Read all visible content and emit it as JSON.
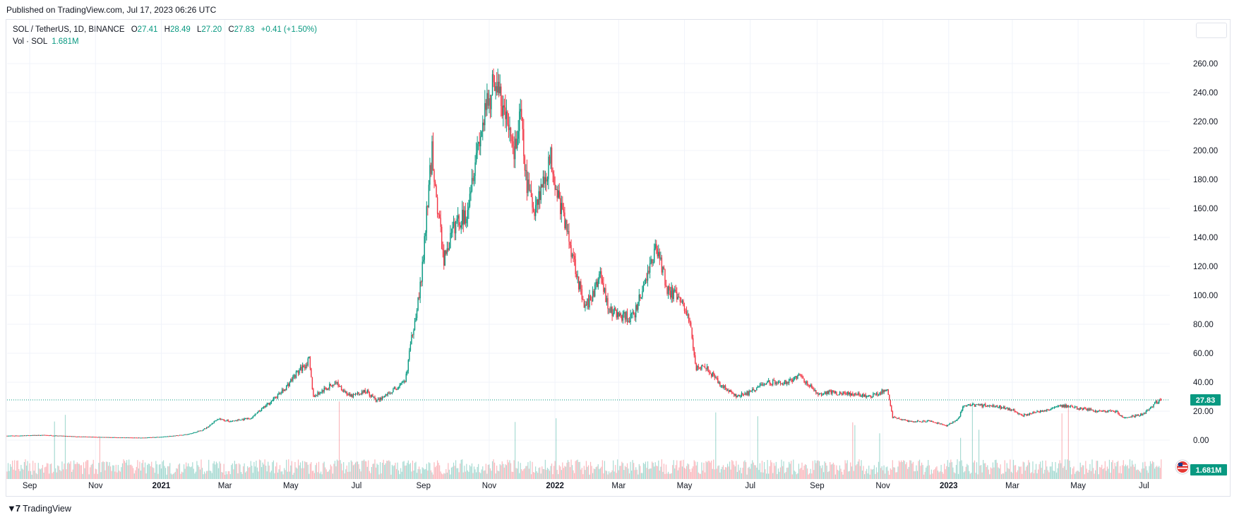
{
  "header": {
    "published": "Published on TradingView.com, Jul 17, 2023 06:26 UTC"
  },
  "legend": {
    "symbol": "SOL / TetherUS, 1D, BINANCE",
    "open_label": "O",
    "open": "27.41",
    "high_label": "H",
    "high": "28.49",
    "low_label": "L",
    "low": "27.20",
    "close_label": "C",
    "close": "27.83",
    "change": "+0.41 (+1.50%)"
  },
  "volume_legend": {
    "label": "Vol · SOL",
    "value": "1.681M"
  },
  "price_tag": "27.83",
  "volume_tag": "1.681M",
  "footer": {
    "brand": "TradingView",
    "logo_icon": "tradingview-logo-icon"
  },
  "colors": {
    "up": "#089981",
    "down": "#f23645",
    "grid": "#f0f3fa",
    "text": "#131722"
  },
  "chart_data": {
    "type": "candlestick",
    "y_axis": {
      "ticks": [
        "260.00",
        "240.00",
        "220.00",
        "200.00",
        "180.00",
        "160.00",
        "140.00",
        "120.00",
        "100.00",
        "80.00",
        "60.00",
        "40.00",
        "20.00",
        "0.00"
      ],
      "range": [
        -20,
        270
      ]
    },
    "x_axis": {
      "ticks": [
        "Sep",
        "Nov",
        "2021",
        "Mar",
        "May",
        "Jul",
        "Sep",
        "Nov",
        "2022",
        "Mar",
        "May",
        "Jul",
        "Sep",
        "Nov",
        "2023",
        "Mar",
        "May",
        "Jul"
      ],
      "range": [
        "2020-08-11",
        "2023-07-25"
      ]
    },
    "last_price": 27.83,
    "price_anchors": [
      [
        "2020-08-11",
        3.0
      ],
      [
        "2020-09-15",
        3.5
      ],
      [
        "2020-10-15",
        2.5
      ],
      [
        "2020-11-15",
        2.0
      ],
      [
        "2020-12-15",
        1.7
      ],
      [
        "2021-01-05",
        2.5
      ],
      [
        "2021-01-25",
        4.0
      ],
      [
        "2021-02-08",
        7.0
      ],
      [
        "2021-02-15",
        10.0
      ],
      [
        "2021-02-22",
        15.0
      ],
      [
        "2021-03-05",
        13.0
      ],
      [
        "2021-03-25",
        15.0
      ],
      [
        "2021-04-10",
        25.0
      ],
      [
        "2021-04-25",
        35.0
      ],
      [
        "2021-05-05",
        45.0
      ],
      [
        "2021-05-18",
        55.0
      ],
      [
        "2021-05-22",
        30.0
      ],
      [
        "2021-06-01",
        35.0
      ],
      [
        "2021-06-12",
        40.0
      ],
      [
        "2021-06-25",
        30.0
      ],
      [
        "2021-07-10",
        34.0
      ],
      [
        "2021-07-20",
        27.0
      ],
      [
        "2021-08-05",
        35.0
      ],
      [
        "2021-08-15",
        40.0
      ],
      [
        "2021-08-22",
        75.0
      ],
      [
        "2021-08-30",
        110.0
      ],
      [
        "2021-09-09",
        200.0
      ],
      [
        "2021-09-14",
        160.0
      ],
      [
        "2021-09-20",
        125.0
      ],
      [
        "2021-10-01",
        150.0
      ],
      [
        "2021-10-10",
        155.0
      ],
      [
        "2021-10-20",
        200.0
      ],
      [
        "2021-11-06",
        250.0
      ],
      [
        "2021-11-15",
        225.0
      ],
      [
        "2021-11-25",
        200.0
      ],
      [
        "2021-11-30",
        225.0
      ],
      [
        "2021-12-05",
        180.0
      ],
      [
        "2021-12-12",
        160.0
      ],
      [
        "2021-12-22",
        180.0
      ],
      [
        "2021-12-28",
        195.0
      ],
      [
        "2022-01-05",
        165.0
      ],
      [
        "2022-01-12",
        145.0
      ],
      [
        "2022-01-20",
        120.0
      ],
      [
        "2022-01-28",
        90.0
      ],
      [
        "2022-02-05",
        100.0
      ],
      [
        "2022-02-12",
        115.0
      ],
      [
        "2022-02-20",
        90.0
      ],
      [
        "2022-03-05",
        85.0
      ],
      [
        "2022-03-15",
        85.0
      ],
      [
        "2022-03-30",
        120.0
      ],
      [
        "2022-04-05",
        135.0
      ],
      [
        "2022-04-15",
        105.0
      ],
      [
        "2022-04-28",
        95.0
      ],
      [
        "2022-05-05",
        85.0
      ],
      [
        "2022-05-12",
        50.0
      ],
      [
        "2022-05-20",
        52.0
      ],
      [
        "2022-06-01",
        40.0
      ],
      [
        "2022-06-18",
        30.0
      ],
      [
        "2022-07-01",
        33.0
      ],
      [
        "2022-07-15",
        40.0
      ],
      [
        "2022-08-05",
        40.0
      ],
      [
        "2022-08-15",
        45.0
      ],
      [
        "2022-09-01",
        32.0
      ],
      [
        "2022-09-15",
        33.0
      ],
      [
        "2022-10-01",
        32.0
      ],
      [
        "2022-10-20",
        30.0
      ],
      [
        "2022-11-05",
        35.0
      ],
      [
        "2022-11-10",
        16.0
      ],
      [
        "2022-11-25",
        13.0
      ],
      [
        "2022-12-15",
        13.0
      ],
      [
        "2022-12-30",
        10.0
      ],
      [
        "2023-01-10",
        15.0
      ],
      [
        "2023-01-15",
        24.0
      ],
      [
        "2023-02-10",
        24.0
      ],
      [
        "2023-03-01",
        21.0
      ],
      [
        "2023-03-10",
        17.0
      ],
      [
        "2023-04-01",
        21.0
      ],
      [
        "2023-04-15",
        24.0
      ],
      [
        "2023-05-01",
        22.0
      ],
      [
        "2023-05-20",
        20.0
      ],
      [
        "2023-06-05",
        20.0
      ],
      [
        "2023-06-12",
        15.0
      ],
      [
        "2023-07-01",
        18.0
      ],
      [
        "2023-07-12",
        26.0
      ],
      [
        "2023-07-17",
        27.83
      ]
    ]
  }
}
